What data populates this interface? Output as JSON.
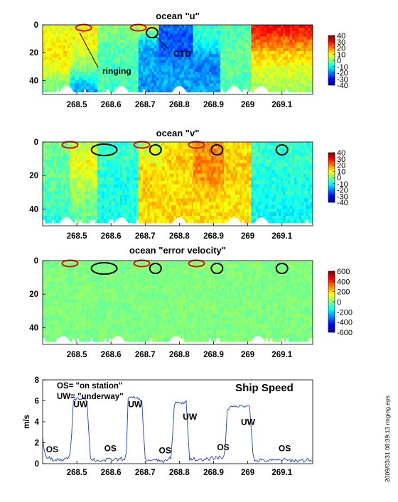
{
  "footer_text": "2009/03/31 08:39:13   ringing.eps",
  "colors": {
    "jet": [
      "#00008f",
      "#0000ff",
      "#0080ff",
      "#00ffff",
      "#80ff80",
      "#ffff00",
      "#ff8000",
      "#ff0000",
      "#800000"
    ],
    "ring_marker": "#e01010",
    "ctd_marker": "#000000",
    "speed_line": "#1a3ccc"
  },
  "chart_data": [
    {
      "type": "heatmap",
      "title": "ocean \"u\"",
      "xticks": [
        "268.5",
        "268.6",
        "268.7",
        "268.8",
        "268.9",
        "269",
        "269.1"
      ],
      "yticks": [
        "0",
        "20",
        "40"
      ],
      "ylim": [
        0,
        50
      ],
      "colorbar": {
        "min": -40,
        "max": 40,
        "ticks": [
          "40",
          "30",
          "20",
          "10",
          "0",
          "-10",
          "-20",
          "-30",
          "-40"
        ]
      },
      "annotations": [
        {
          "text": "ringing",
          "x": 268.55,
          "y": 22
        },
        {
          "text": "CTD",
          "x": 268.77,
          "y": 12
        }
      ],
      "ringing_markers": [
        268.52,
        268.68
      ],
      "ctd_markers": [
        268.72
      ],
      "segments": [
        {
          "x0": 268.4,
          "x1": 268.48,
          "profile": [
            0.2,
            0.25,
            0.28,
            0.22,
            0.0,
            -0.05
          ]
        },
        {
          "x0": 268.48,
          "x1": 268.56,
          "profile": [
            0.25,
            0.25,
            0.15,
            0.0,
            -0.3,
            -0.5
          ]
        },
        {
          "x0": 268.56,
          "x1": 268.68,
          "profile": [
            0.05,
            -0.05,
            -0.1,
            -0.1,
            -0.1,
            -0.15
          ]
        },
        {
          "x0": 268.68,
          "x1": 268.74,
          "profile": [
            0.2,
            -0.3,
            -0.45,
            -0.4,
            -0.45,
            -0.5
          ]
        },
        {
          "x0": 268.74,
          "x1": 268.84,
          "profile": [
            -0.55,
            -0.6,
            -0.55,
            -0.45,
            -0.4,
            -0.5
          ]
        },
        {
          "x0": 268.84,
          "x1": 268.92,
          "profile": [
            -0.15,
            -0.2,
            -0.4,
            -0.5,
            -0.45,
            -0.4
          ]
        },
        {
          "x0": 268.92,
          "x1": 269.01,
          "profile": [
            -0.1,
            -0.1,
            -0.05,
            -0.05,
            -0.1,
            -0.15
          ]
        },
        {
          "x0": 269.01,
          "x1": 269.19,
          "profile": [
            0.75,
            0.55,
            0.35,
            0.2,
            0.1,
            0.05
          ]
        }
      ]
    },
    {
      "type": "heatmap",
      "title": "ocean \"v\"",
      "xticks": [
        "268.5",
        "268.6",
        "268.7",
        "268.8",
        "268.9",
        "269",
        "269.1"
      ],
      "yticks": [
        "0",
        "20",
        "40"
      ],
      "ylim": [
        0,
        50
      ],
      "colorbar": {
        "min": -40,
        "max": 40,
        "ticks": [
          "40",
          "30",
          "20",
          "10",
          "0",
          "-10",
          "-20",
          "-30",
          "-40"
        ]
      },
      "ringing_markers": [
        268.48,
        268.69,
        268.85
      ],
      "ctd_markers": [
        268.58,
        268.73,
        268.91,
        269.1
      ],
      "segments": [
        {
          "x0": 268.4,
          "x1": 268.48,
          "profile": [
            0.0,
            -0.05,
            -0.05,
            -0.1,
            -0.15,
            -0.25
          ]
        },
        {
          "x0": 268.48,
          "x1": 268.56,
          "profile": [
            0.1,
            0.25,
            0.15,
            0.05,
            -0.05,
            -0.1
          ]
        },
        {
          "x0": 268.56,
          "x1": 268.68,
          "profile": [
            -0.15,
            -0.15,
            -0.2,
            -0.2,
            -0.2,
            -0.2
          ]
        },
        {
          "x0": 268.68,
          "x1": 268.75,
          "profile": [
            0.1,
            0.25,
            0.35,
            0.35,
            0.3,
            0.3
          ]
        },
        {
          "x0": 268.75,
          "x1": 268.84,
          "profile": [
            0.3,
            0.35,
            0.3,
            0.3,
            0.35,
            0.3
          ]
        },
        {
          "x0": 268.84,
          "x1": 268.93,
          "profile": [
            0.45,
            0.5,
            0.45,
            0.35,
            0.3,
            0.3
          ]
        },
        {
          "x0": 268.93,
          "x1": 269.01,
          "profile": [
            0.3,
            0.35,
            0.35,
            0.3,
            0.3,
            0.3
          ]
        },
        {
          "x0": 269.01,
          "x1": 269.19,
          "profile": [
            -0.15,
            -0.15,
            -0.2,
            -0.2,
            -0.25,
            -0.25
          ]
        }
      ]
    },
    {
      "type": "heatmap",
      "title": "ocean \"error velocity\"",
      "xticks": [
        "268.5",
        "268.6",
        "268.7",
        "268.8",
        "268.9",
        "269",
        "269.1"
      ],
      "yticks": [
        "0",
        "20",
        "40"
      ],
      "ylim": [
        0,
        50
      ],
      "colorbar": {
        "min": -600,
        "max": 600,
        "ticks": [
          "600",
          "400",
          "200",
          "0",
          "-200",
          "-400",
          "-600"
        ]
      },
      "ringing_markers": [
        268.48,
        268.69,
        268.85
      ],
      "ctd_markers": [
        268.58,
        268.73,
        268.91,
        269.1
      ],
      "segments": [
        {
          "x0": 268.4,
          "x1": 269.19,
          "profile": [
            0.0,
            0.0,
            0.0,
            0.0,
            0.0,
            0.0
          ]
        }
      ]
    },
    {
      "type": "line",
      "title": "Ship Speed",
      "ylabel": "m/s",
      "xticks": [
        "268.5",
        "268.6",
        "268.7",
        "268.8",
        "268.9",
        "269",
        "269.1"
      ],
      "yticks": [
        "0",
        "2",
        "4",
        "6",
        "8"
      ],
      "ylim": [
        0,
        8
      ],
      "xlim": [
        268.4,
        269.19
      ],
      "legend": [
        "OS= \"on station\"",
        "UW= \"underway\""
      ],
      "labels": [
        {
          "text": "OS",
          "x": 268.41,
          "y": 1.1
        },
        {
          "text": "UW",
          "x": 268.49,
          "y": 5.4
        },
        {
          "text": "OS",
          "x": 268.58,
          "y": 1.2
        },
        {
          "text": "UW",
          "x": 268.65,
          "y": 5.4
        },
        {
          "text": "OS",
          "x": 268.74,
          "y": 1.0
        },
        {
          "text": "UW",
          "x": 268.81,
          "y": 4.2
        },
        {
          "text": "OS",
          "x": 268.91,
          "y": 1.3
        },
        {
          "text": "UW",
          "x": 268.98,
          "y": 3.7
        },
        {
          "text": "OS",
          "x": 269.09,
          "y": 1.2
        }
      ],
      "series": [
        {
          "x": [
            268.4,
            268.405,
            268.41,
            268.43,
            268.45,
            268.47,
            268.48,
            268.485,
            268.49,
            268.5,
            268.51,
            268.52,
            268.53,
            268.535,
            268.54,
            268.56,
            268.58,
            268.6,
            268.62,
            268.64,
            268.645,
            268.65,
            268.66,
            268.67,
            268.68,
            268.69,
            268.695,
            268.7,
            268.72,
            268.74,
            268.76,
            268.775,
            268.78,
            268.785,
            268.79,
            268.8,
            268.81,
            268.82,
            268.825,
            268.83,
            268.85,
            268.87,
            268.89,
            268.91,
            268.93,
            268.935,
            268.94,
            268.95,
            268.97,
            268.99,
            269.005,
            269.01,
            269.015,
            269.02,
            269.04,
            269.06,
            269.08,
            269.1,
            269.12,
            269.14,
            269.16,
            269.18,
            269.19
          ],
          "y": [
            2.6,
            1.2,
            0.6,
            0.4,
            0.3,
            0.4,
            0.9,
            3.0,
            6.1,
            6.2,
            6.2,
            6.3,
            6.0,
            3.0,
            0.5,
            0.3,
            0.3,
            0.4,
            0.4,
            0.5,
            1.0,
            6.3,
            6.3,
            6.3,
            6.2,
            6.0,
            3.0,
            0.4,
            0.3,
            0.3,
            0.2,
            0.6,
            2.5,
            5.6,
            5.9,
            5.8,
            5.8,
            5.9,
            3.0,
            0.5,
            0.4,
            0.3,
            0.5,
            0.6,
            0.6,
            2.0,
            5.2,
            5.4,
            5.5,
            5.5,
            5.6,
            3.5,
            0.9,
            0.3,
            0.3,
            0.3,
            0.3,
            0.4,
            0.3,
            0.3,
            0.3,
            0.4,
            0.3
          ]
        }
      ]
    }
  ]
}
